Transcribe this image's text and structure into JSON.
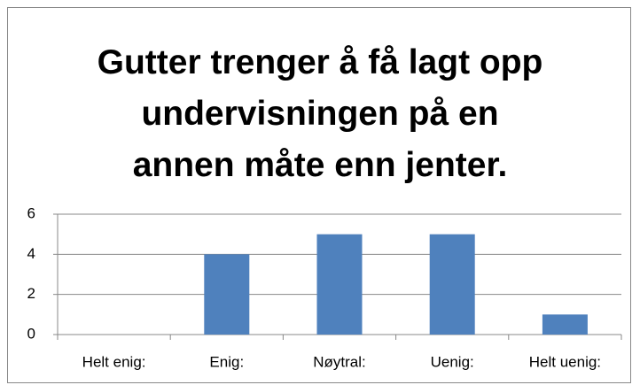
{
  "chart_data": {
    "type": "bar",
    "title": "Gutter trenger å få lagt opp\nundervisningen på en\nannen måte enn jenter.",
    "categories": [
      "Helt enig:",
      "Enig:",
      "Nøytral:",
      "Uenig:",
      "Helt uenig:"
    ],
    "values": [
      0,
      4,
      5,
      5,
      1
    ],
    "color": "#4f81bd",
    "ylim": [
      0,
      6
    ],
    "yticks": [
      0,
      2,
      4,
      6
    ],
    "grid": true
  }
}
